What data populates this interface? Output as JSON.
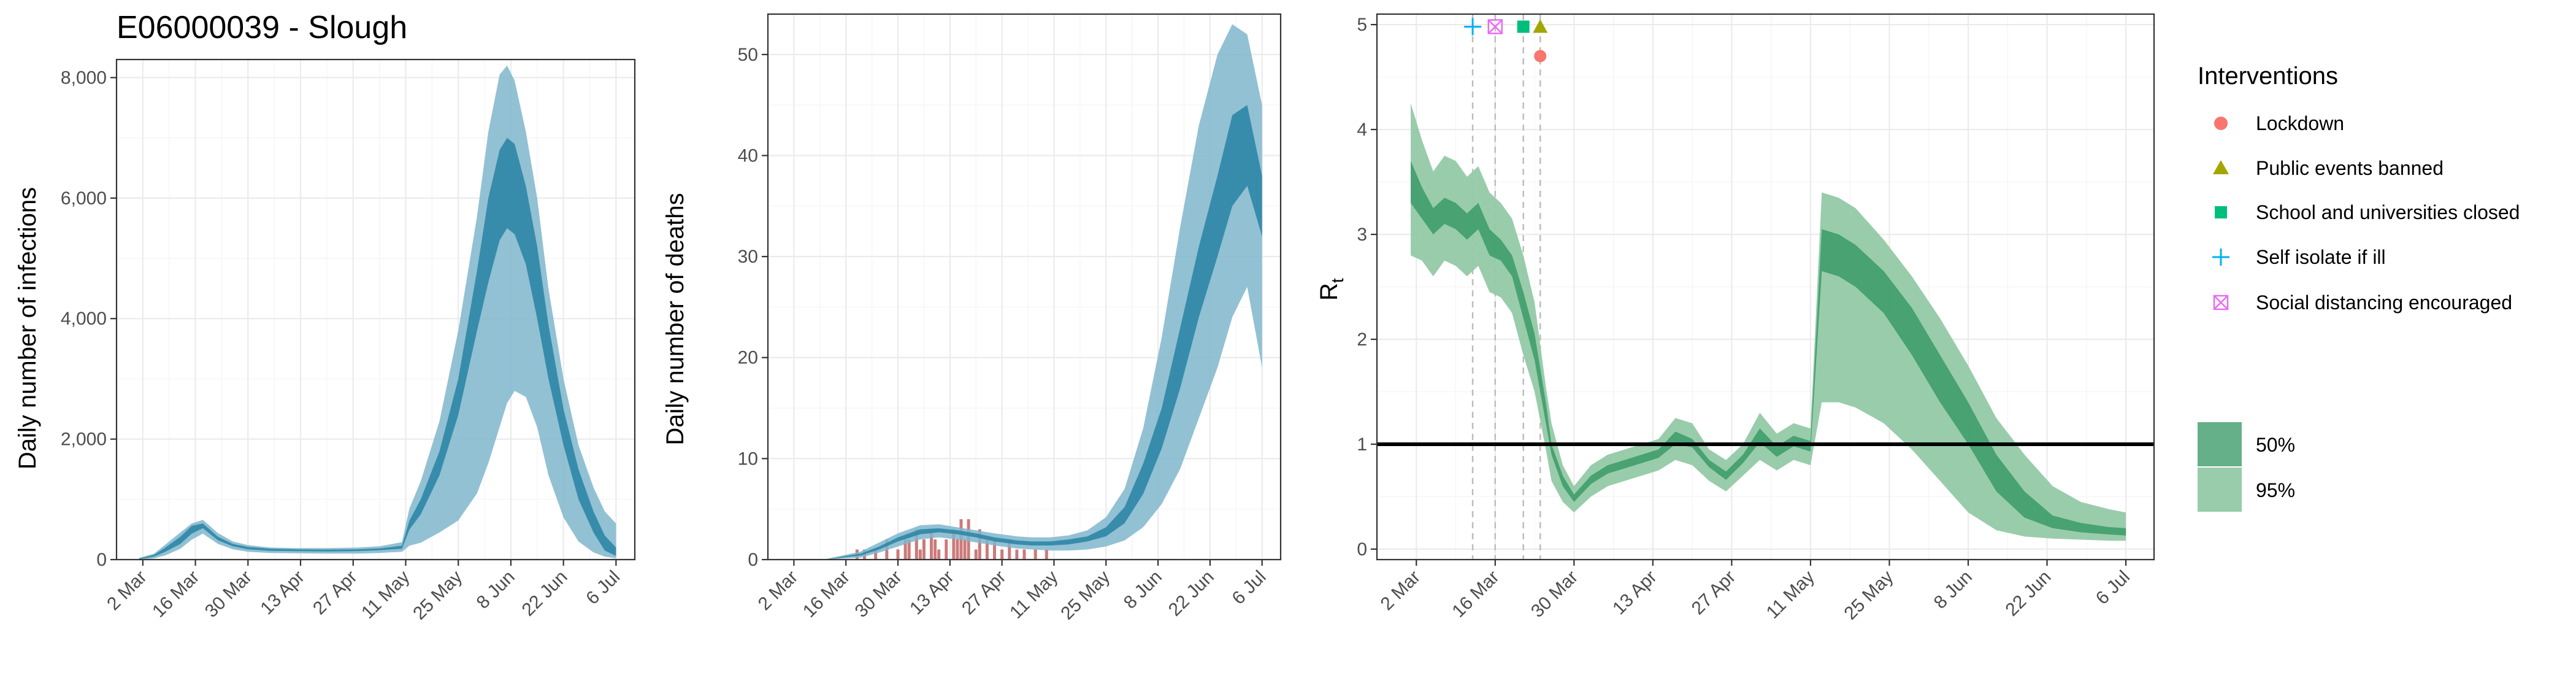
{
  "page": {
    "title": "E06000039 - Slough"
  },
  "colors": {
    "infections_50": "#2f86a6",
    "infections_95": "#7fb6cd",
    "deaths_bars": "#cc7a7a",
    "rt_50": "#3a9a66",
    "rt_95": "#93c9a6",
    "lockdown": "#f8766d",
    "public_events": "#a3a500",
    "schools": "#00bf7d",
    "self_isolate": "#00b0f6",
    "social_distancing": "#e76bf3"
  },
  "legend": {
    "interventions_title": "Interventions",
    "interventions": [
      {
        "label": "Lockdown",
        "icon": "circle"
      },
      {
        "label": "Public events banned",
        "icon": "triangle"
      },
      {
        "label": "School and universities closed",
        "icon": "square"
      },
      {
        "label": "Self isolate if ill",
        "icon": "plus"
      },
      {
        "label": "Social distancing encouraged",
        "icon": "square-cross"
      }
    ],
    "bands": [
      {
        "label": "50%"
      },
      {
        "label": "95%"
      }
    ]
  },
  "chart_data": [
    {
      "type": "area",
      "id": "infections",
      "title": "E06000039 - Slough",
      "xlabel": "",
      "ylabel": "Daily number of infections",
      "x_tick_labels": [
        "2 Mar",
        "16 Mar",
        "30 Mar",
        "13 Apr",
        "27 Apr",
        "11 May",
        "25 May",
        "8 Jun",
        "22 Jun",
        "6 Jul"
      ],
      "y_ticks": [
        0,
        2000,
        4000,
        6000,
        8000
      ],
      "y_tick_labels": [
        "0",
        "2,000",
        "4,000",
        "6,000",
        "8,000"
      ],
      "xlim": [
        "2020-02-24",
        "2020-07-11"
      ],
      "ylim": [
        0,
        8300
      ],
      "grid": true,
      "bands": {
        "x": [
          "2020-03-01",
          "2020-03-05",
          "2020-03-08",
          "2020-03-12",
          "2020-03-15",
          "2020-03-18",
          "2020-03-22",
          "2020-03-26",
          "2020-03-30",
          "2020-04-05",
          "2020-04-12",
          "2020-04-20",
          "2020-04-28",
          "2020-05-04",
          "2020-05-10",
          "2020-05-12",
          "2020-05-15",
          "2020-05-20",
          "2020-05-25",
          "2020-05-30",
          "2020-06-02",
          "2020-06-05",
          "2020-06-07",
          "2020-06-09",
          "2020-06-12",
          "2020-06-15",
          "2020-06-18",
          "2020-06-22",
          "2020-06-26",
          "2020-06-30",
          "2020-07-03",
          "2020-07-06"
        ],
        "ci95_low": [
          0,
          20,
          70,
          180,
          330,
          430,
          260,
          170,
          130,
          110,
          105,
          100,
          100,
          110,
          130,
          230,
          280,
          450,
          650,
          1100,
          1600,
          2200,
          2600,
          2800,
          2700,
          2200,
          1400,
          700,
          300,
          120,
          50,
          20
        ],
        "ci95_high": [
          30,
          100,
          250,
          450,
          600,
          660,
          440,
          300,
          240,
          200,
          190,
          190,
          200,
          220,
          290,
          850,
          1300,
          2300,
          3800,
          5700,
          7100,
          8050,
          8200,
          7950,
          7100,
          6000,
          4500,
          3000,
          1900,
          1200,
          800,
          600
        ],
        "ci50_low": [
          5,
          50,
          130,
          260,
          430,
          520,
          320,
          220,
          170,
          145,
          140,
          135,
          140,
          155,
          180,
          500,
          750,
          1400,
          2400,
          3800,
          4600,
          5300,
          5500,
          5400,
          4900,
          4000,
          3000,
          1900,
          1000,
          450,
          150,
          60
        ],
        "ci50_high": [
          15,
          80,
          200,
          380,
          560,
          600,
          380,
          260,
          210,
          180,
          170,
          165,
          170,
          185,
          230,
          650,
          1000,
          1800,
          3000,
          4800,
          6000,
          6800,
          7000,
          6900,
          6200,
          5200,
          3900,
          2500,
          1500,
          800,
          400,
          200
        ]
      }
    },
    {
      "type": "bar",
      "id": "deaths",
      "title": "",
      "xlabel": "",
      "ylabel": "Daily number of deaths",
      "x_tick_labels": [
        "2 Mar",
        "16 Mar",
        "30 Mar",
        "13 Apr",
        "27 Apr",
        "11 May",
        "25 May",
        "8 Jun",
        "22 Jun",
        "6 Jul"
      ],
      "y_ticks": [
        0,
        10,
        20,
        30,
        40,
        50
      ],
      "y_tick_labels": [
        "0",
        "10",
        "20",
        "30",
        "40",
        "50"
      ],
      "xlim": [
        "2020-02-24",
        "2020-07-11"
      ],
      "ylim": [
        0,
        54
      ],
      "grid": true,
      "observed_deaths": {
        "x": [
          "2020-03-19",
          "2020-03-21",
          "2020-03-24",
          "2020-03-27",
          "2020-03-30",
          "2020-04-01",
          "2020-04-02",
          "2020-04-04",
          "2020-04-05",
          "2020-04-06",
          "2020-04-08",
          "2020-04-09",
          "2020-04-10",
          "2020-04-12",
          "2020-04-14",
          "2020-04-15",
          "2020-04-16",
          "2020-04-17",
          "2020-04-18",
          "2020-04-20",
          "2020-04-21",
          "2020-04-23",
          "2020-04-25",
          "2020-04-27",
          "2020-04-29",
          "2020-05-01",
          "2020-05-03",
          "2020-05-06",
          "2020-05-09"
        ],
        "values": [
          1,
          1,
          1,
          2,
          1,
          2,
          2,
          3,
          1,
          2,
          3,
          2,
          1,
          2,
          3,
          2,
          4,
          2,
          4,
          1,
          3,
          2,
          2,
          1,
          2,
          1,
          1,
          1,
          1
        ]
      },
      "bands": {
        "x": [
          "2020-03-01",
          "2020-03-10",
          "2020-03-20",
          "2020-03-25",
          "2020-03-30",
          "2020-04-05",
          "2020-04-10",
          "2020-04-15",
          "2020-04-20",
          "2020-04-25",
          "2020-05-01",
          "2020-05-05",
          "2020-05-10",
          "2020-05-15",
          "2020-05-20",
          "2020-05-25",
          "2020-05-30",
          "2020-06-04",
          "2020-06-09",
          "2020-06-14",
          "2020-06-19",
          "2020-06-24",
          "2020-06-28",
          "2020-07-02",
          "2020-07-06"
        ],
        "ci95_low": [
          0,
          0,
          0.2,
          0.7,
          1.3,
          2.0,
          2.2,
          2.0,
          1.7,
          1.4,
          1.1,
          1.0,
          0.9,
          0.9,
          1.0,
          1.3,
          1.9,
          3.2,
          5.5,
          9.0,
          14,
          19,
          24,
          27,
          19
        ],
        "ci95_high": [
          0,
          0,
          0.8,
          1.7,
          2.6,
          3.4,
          3.5,
          3.2,
          2.9,
          2.6,
          2.3,
          2.2,
          2.2,
          2.4,
          2.9,
          4.2,
          7.0,
          13,
          22,
          33,
          43,
          50,
          53,
          52,
          45
        ],
        "ci50_low": [
          0,
          0,
          0.4,
          1.0,
          1.8,
          2.5,
          2.7,
          2.5,
          2.2,
          1.8,
          1.5,
          1.4,
          1.4,
          1.5,
          1.8,
          2.3,
          3.6,
          6.5,
          11,
          17,
          24,
          30,
          35,
          37,
          32
        ],
        "ci50_high": [
          0,
          0,
          0.6,
          1.3,
          2.2,
          3.0,
          3.1,
          2.9,
          2.6,
          2.2,
          1.9,
          1.8,
          1.8,
          2.0,
          2.3,
          3.2,
          5.2,
          9.5,
          15,
          23,
          31,
          38,
          44,
          45,
          38
        ]
      }
    },
    {
      "type": "area",
      "id": "rt",
      "title": "",
      "xlabel": "",
      "ylabel": "R",
      "ylabel_subscript": "t",
      "x_tick_labels": [
        "2 Mar",
        "16 Mar",
        "30 Mar",
        "13 Apr",
        "27 Apr",
        "11 May",
        "25 May",
        "8 Jun",
        "22 Jun",
        "6 Jul"
      ],
      "y_ticks": [
        0,
        1,
        2,
        3,
        4,
        5
      ],
      "y_tick_labels": [
        "0",
        "1",
        "2",
        "3",
        "4",
        "5"
      ],
      "xlim": [
        "2020-02-24",
        "2020-07-11"
      ],
      "ylim": [
        -0.1,
        5.1
      ],
      "grid": true,
      "reference_line": 1,
      "intervention_dates": [
        "2020-03-12",
        "2020-03-16",
        "2020-03-21",
        "2020-03-24"
      ],
      "intervention_markers": [
        {
          "name": "Self isolate if ill",
          "date": "2020-03-12",
          "y": 4.98
        },
        {
          "name": "Social distancing encouraged",
          "date": "2020-03-16",
          "y": 4.98
        },
        {
          "name": "School and universities closed",
          "date": "2020-03-21",
          "y": 4.98
        },
        {
          "name": "Public events banned",
          "date": "2020-03-24",
          "y": 4.98
        },
        {
          "name": "Lockdown",
          "date": "2020-03-24",
          "y": 4.7
        }
      ],
      "bands": {
        "x": [
          "2020-03-01",
          "2020-03-03",
          "2020-03-05",
          "2020-03-07",
          "2020-03-09",
          "2020-03-11",
          "2020-03-13",
          "2020-03-15",
          "2020-03-17",
          "2020-03-19",
          "2020-03-21",
          "2020-03-23",
          "2020-03-25",
          "2020-03-26",
          "2020-03-28",
          "2020-03-30",
          "2020-04-02",
          "2020-04-05",
          "2020-04-08",
          "2020-04-11",
          "2020-04-14",
          "2020-04-17",
          "2020-04-20",
          "2020-04-23",
          "2020-04-26",
          "2020-04-29",
          "2020-05-02",
          "2020-05-05",
          "2020-05-08",
          "2020-05-11",
          "2020-05-13",
          "2020-05-16",
          "2020-05-19",
          "2020-05-24",
          "2020-05-29",
          "2020-06-03",
          "2020-06-08",
          "2020-06-13",
          "2020-06-18",
          "2020-06-23",
          "2020-06-28",
          "2020-07-03",
          "2020-07-06"
        ],
        "ci95_low": [
          2.8,
          2.75,
          2.6,
          2.75,
          2.7,
          2.6,
          2.7,
          2.45,
          2.4,
          2.25,
          1.85,
          1.5,
          0.95,
          0.65,
          0.45,
          0.35,
          0.5,
          0.6,
          0.65,
          0.7,
          0.75,
          0.85,
          0.8,
          0.65,
          0.55,
          0.7,
          0.85,
          0.75,
          0.85,
          0.8,
          1.4,
          1.4,
          1.35,
          1.2,
          0.95,
          0.65,
          0.35,
          0.18,
          0.12,
          0.1,
          0.09,
          0.08,
          0.08
        ],
        "ci95_high": [
          4.25,
          3.9,
          3.6,
          3.75,
          3.7,
          3.55,
          3.65,
          3.4,
          3.3,
          3.15,
          2.8,
          2.35,
          1.55,
          1.2,
          0.8,
          0.6,
          0.8,
          0.9,
          0.95,
          1.0,
          1.05,
          1.25,
          1.2,
          0.95,
          0.85,
          1.0,
          1.3,
          1.1,
          1.2,
          1.15,
          3.4,
          3.35,
          3.25,
          2.95,
          2.6,
          2.2,
          1.75,
          1.25,
          0.9,
          0.6,
          0.45,
          0.38,
          0.35
        ]
      },
      "bands_50": {
        "ci50_low": [
          3.3,
          3.15,
          3.0,
          3.1,
          3.05,
          2.95,
          3.05,
          2.8,
          2.75,
          2.6,
          2.2,
          1.8,
          1.2,
          0.9,
          0.6,
          0.45,
          0.62,
          0.72,
          0.77,
          0.82,
          0.87,
          1.0,
          0.97,
          0.78,
          0.66,
          0.82,
          1.02,
          0.88,
          0.98,
          0.93,
          2.65,
          2.6,
          2.5,
          2.25,
          1.85,
          1.4,
          1.0,
          0.55,
          0.3,
          0.2,
          0.16,
          0.14,
          0.13
        ],
        "ci50_high": [
          3.7,
          3.45,
          3.25,
          3.35,
          3.3,
          3.2,
          3.3,
          3.05,
          2.95,
          2.8,
          2.45,
          2.05,
          1.4,
          1.0,
          0.7,
          0.52,
          0.7,
          0.8,
          0.85,
          0.9,
          0.95,
          1.12,
          1.05,
          0.85,
          0.74,
          0.9,
          1.15,
          0.98,
          1.08,
          1.03,
          3.05,
          3.0,
          2.9,
          2.65,
          2.3,
          1.85,
          1.4,
          0.9,
          0.55,
          0.32,
          0.25,
          0.21,
          0.2
        ]
      }
    }
  ]
}
